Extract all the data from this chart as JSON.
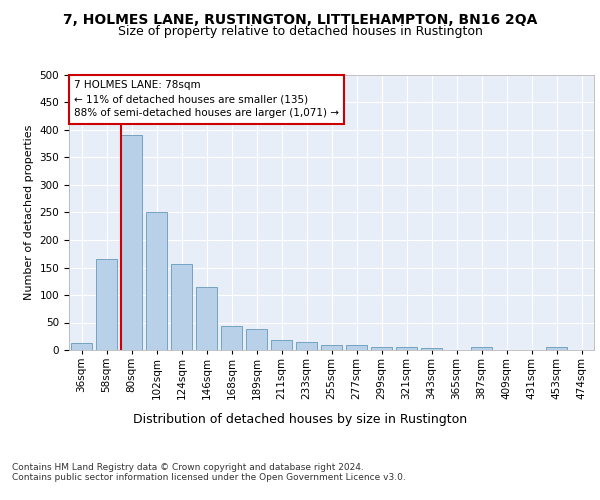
{
  "title1": "7, HOLMES LANE, RUSTINGTON, LITTLEHAMPTON, BN16 2QA",
  "title2": "Size of property relative to detached houses in Rustington",
  "xlabel": "Distribution of detached houses by size in Rustington",
  "ylabel": "Number of detached properties",
  "categories": [
    "36sqm",
    "58sqm",
    "80sqm",
    "102sqm",
    "124sqm",
    "146sqm",
    "168sqm",
    "189sqm",
    "211sqm",
    "233sqm",
    "255sqm",
    "277sqm",
    "299sqm",
    "321sqm",
    "343sqm",
    "365sqm",
    "387sqm",
    "409sqm",
    "431sqm",
    "453sqm",
    "474sqm"
  ],
  "values": [
    13,
    165,
    390,
    250,
    157,
    115,
    43,
    39,
    18,
    15,
    10,
    10,
    6,
    5,
    4,
    0,
    5,
    0,
    0,
    5,
    0
  ],
  "bar_color": "#b8d0e8",
  "bar_edge_color": "#6699bb",
  "vline_x_index": 2,
  "vline_color": "#cc0000",
  "annotation_text": "7 HOLMES LANE: 78sqm\n← 11% of detached houses are smaller (135)\n88% of semi-detached houses are larger (1,071) →",
  "annotation_box_color": "#ffffff",
  "annotation_box_edge_color": "#cc0000",
  "ylim": [
    0,
    500
  ],
  "yticks": [
    0,
    50,
    100,
    150,
    200,
    250,
    300,
    350,
    400,
    450,
    500
  ],
  "footer": "Contains HM Land Registry data © Crown copyright and database right 2024.\nContains public sector information licensed under the Open Government Licence v3.0.",
  "title1_fontsize": 10,
  "title2_fontsize": 9,
  "xlabel_fontsize": 9,
  "ylabel_fontsize": 8,
  "tick_fontsize": 7.5,
  "annotation_fontsize": 7.5,
  "footer_fontsize": 6.5,
  "bg_color": "#ffffff",
  "plot_bg_color": "#e8eef8",
  "grid_color": "#ffffff"
}
